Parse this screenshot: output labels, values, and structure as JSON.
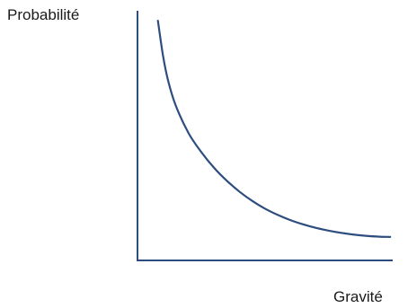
{
  "chart_data": {
    "type": "line",
    "title": "",
    "ylabel": "Probabilité",
    "xlabel": "Gravité",
    "ylim": [
      0,
      100
    ],
    "xlim": [
      0,
      100
    ],
    "grid": false,
    "series": [
      {
        "x": [
          8,
          10,
          12,
          15,
          20,
          25,
          30,
          35,
          40,
          45,
          50,
          55,
          60,
          65,
          70,
          75,
          80,
          85,
          90,
          95,
          99
        ],
        "y": [
          96,
          82,
          72,
          62,
          51,
          43.4,
          37.1,
          31.9,
          27.5,
          23.8,
          20.7,
          18.2,
          16.1,
          14.4,
          13.0,
          11.9,
          11.0,
          10.3,
          9.8,
          9.5,
          9.4
        ],
        "color": "#2e4d7f"
      }
    ],
    "axis_color": "#2e4d7f"
  }
}
